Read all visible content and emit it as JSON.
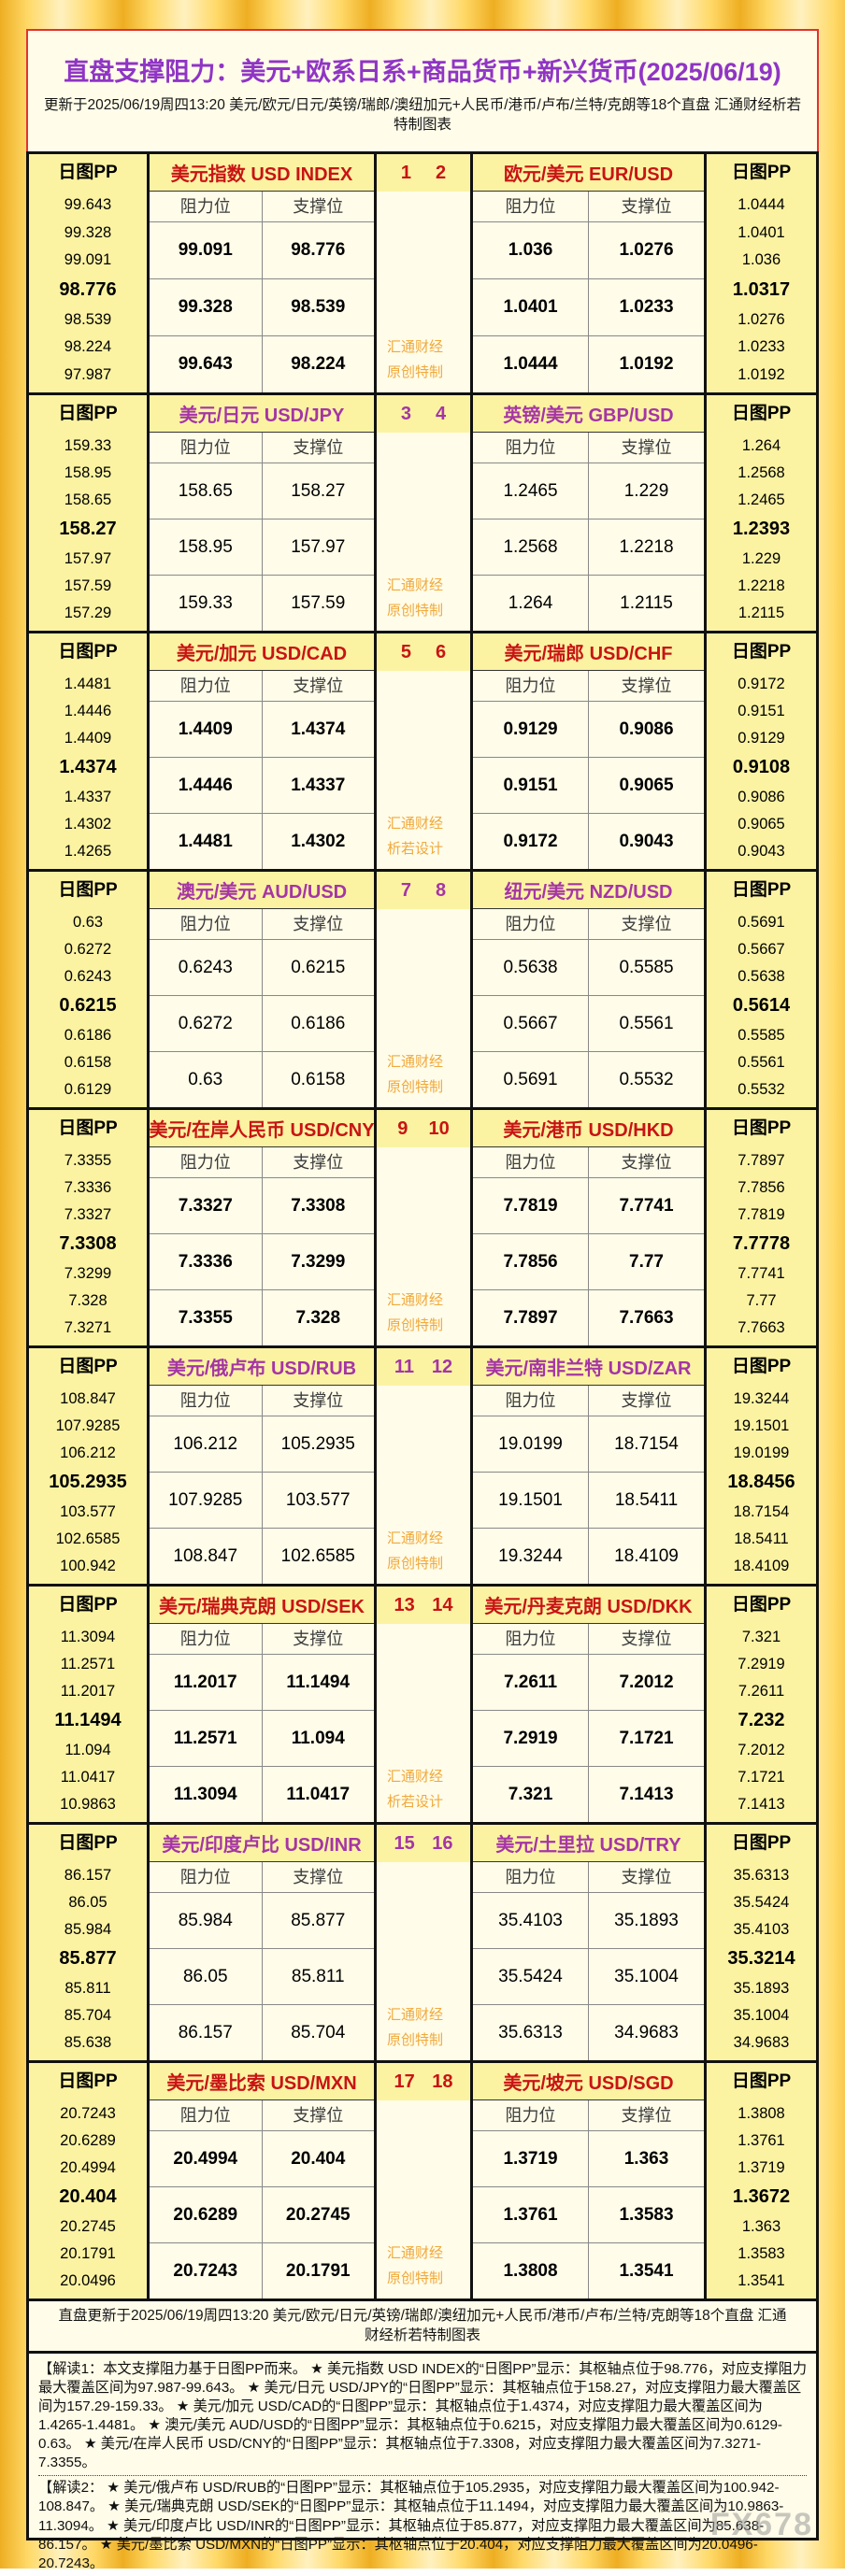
{
  "page": {
    "title": "直盘支撑阻力：美元+欧系日系+商品货币+新兴货币(2025/06/19)",
    "subtitle": "更新于2025/06/19周四13:20 美元/欧元/日元/英镑/瑞郎/澳纽加元+人民币/港币/卢布/兰特/克朗等18个直盘 汇通财经析若特制图表",
    "footer_line": "直盘更新于2025/06/19周四13:20 美元/欧元/日元/英镑/瑞郎/澳纽加元+人民币/港币/卢布/兰特/克朗等18个直盘 汇通财经析若特制图表",
    "brand_watermark": "FX678"
  },
  "labels": {
    "pp_header": "日图PP",
    "resistance": "阻力位",
    "support": "支撑位",
    "watermark_line1": "汇通财经"
  },
  "colors": {
    "red_accent": "#C81414",
    "magenta_accent": "#A535A5",
    "title_purple": "#8F35C5",
    "watermark_orange": "#F0A93C",
    "panel_yellow": "#FBF3A2",
    "panel_cream": "#FFFCE9",
    "gold_background": "#F2B62E"
  },
  "chart_data": {
    "type": "table",
    "title": "直盘支撑阻力：美元+欧系日系+商品货币+新兴货币(2025/06/19)",
    "updated": "2025/06/19 周四 13:20",
    "column_semantics": "pp = [R3,R2,R1,PP(枢轴,加粗),S1,S2,S3]; levels = 三行[阻力位,支撑位]",
    "blocks": [
      {
        "nums": [
          "1",
          "2"
        ],
        "accent": "red",
        "watermark_line2": "原创特制",
        "left": {
          "name": "美元指数",
          "code": "USD INDEX",
          "pivot_index": 3,
          "pp": [
            "99.643",
            "99.328",
            "99.091",
            "98.776",
            "98.539",
            "98.224",
            "97.987"
          ],
          "levels": [
            [
              "99.091",
              "98.776"
            ],
            [
              "99.328",
              "98.539"
            ],
            [
              "99.643",
              "98.224"
            ]
          ]
        },
        "right": {
          "name": "欧元/美元",
          "code": "EUR/USD",
          "pivot_index": 3,
          "pp": [
            "1.0444",
            "1.0401",
            "1.036",
            "1.0317",
            "1.0276",
            "1.0233",
            "1.0192"
          ],
          "levels": [
            [
              "1.036",
              "1.0276"
            ],
            [
              "1.0401",
              "1.0233"
            ],
            [
              "1.0444",
              "1.0192"
            ]
          ]
        }
      },
      {
        "nums": [
          "3",
          "4"
        ],
        "accent": "magenta",
        "watermark_line2": "原创特制",
        "left": {
          "name": "美元/日元",
          "code": "USD/JPY",
          "pivot_index": 3,
          "pp": [
            "159.33",
            "158.95",
            "158.65",
            "158.27",
            "157.97",
            "157.59",
            "157.29"
          ],
          "levels": [
            [
              "158.65",
              "158.27"
            ],
            [
              "158.95",
              "157.97"
            ],
            [
              "159.33",
              "157.59"
            ]
          ]
        },
        "right": {
          "name": "英镑/美元",
          "code": "GBP/USD",
          "pivot_index": 3,
          "pp": [
            "1.264",
            "1.2568",
            "1.2465",
            "1.2393",
            "1.229",
            "1.2218",
            "1.2115"
          ],
          "levels": [
            [
              "1.2465",
              "1.229"
            ],
            [
              "1.2568",
              "1.2218"
            ],
            [
              "1.264",
              "1.2115"
            ]
          ]
        }
      },
      {
        "nums": [
          "5",
          "6"
        ],
        "accent": "red",
        "watermark_line2": "析若设计",
        "left": {
          "name": "美元/加元",
          "code": "USD/CAD",
          "pivot_index": 3,
          "pp": [
            "1.4481",
            "1.4446",
            "1.4409",
            "1.4374",
            "1.4337",
            "1.4302",
            "1.4265"
          ],
          "levels": [
            [
              "1.4409",
              "1.4374"
            ],
            [
              "1.4446",
              "1.4337"
            ],
            [
              "1.4481",
              "1.4302"
            ]
          ]
        },
        "right": {
          "name": "美元/瑞郎",
          "code": "USD/CHF",
          "pivot_index": 3,
          "pp": [
            "0.9172",
            "0.9151",
            "0.9129",
            "0.9108",
            "0.9086",
            "0.9065",
            "0.9043"
          ],
          "levels": [
            [
              "0.9129",
              "0.9086"
            ],
            [
              "0.9151",
              "0.9065"
            ],
            [
              "0.9172",
              "0.9043"
            ]
          ]
        }
      },
      {
        "nums": [
          "7",
          "8"
        ],
        "accent": "magenta",
        "watermark_line2": "原创特制",
        "left": {
          "name": "澳元/美元",
          "code": "AUD/USD",
          "pivot_index": 3,
          "pp": [
            "0.63",
            "0.6272",
            "0.6243",
            "0.6215",
            "0.6186",
            "0.6158",
            "0.6129"
          ],
          "levels": [
            [
              "0.6243",
              "0.6215"
            ],
            [
              "0.6272",
              "0.6186"
            ],
            [
              "0.63",
              "0.6158"
            ]
          ]
        },
        "right": {
          "name": "纽元/美元",
          "code": "NZD/USD",
          "pivot_index": 3,
          "pp": [
            "0.5691",
            "0.5667",
            "0.5638",
            "0.5614",
            "0.5585",
            "0.5561",
            "0.5532"
          ],
          "levels": [
            [
              "0.5638",
              "0.5585"
            ],
            [
              "0.5667",
              "0.5561"
            ],
            [
              "0.5691",
              "0.5532"
            ]
          ]
        }
      },
      {
        "nums": [
          "9",
          "10"
        ],
        "accent": "red",
        "watermark_line2": "原创特制",
        "left": {
          "name": "美元/在岸人民币",
          "code": "USD/CNY",
          "pivot_index": 3,
          "pp": [
            "7.3355",
            "7.3336",
            "7.3327",
            "7.3308",
            "7.3299",
            "7.328",
            "7.3271"
          ],
          "levels": [
            [
              "7.3327",
              "7.3308"
            ],
            [
              "7.3336",
              "7.3299"
            ],
            [
              "7.3355",
              "7.328"
            ]
          ]
        },
        "right": {
          "name": "美元/港币",
          "code": "USD/HKD",
          "pivot_index": 3,
          "pp": [
            "7.7897",
            "7.7856",
            "7.7819",
            "7.7778",
            "7.7741",
            "7.77",
            "7.7663"
          ],
          "levels": [
            [
              "7.7819",
              "7.7741"
            ],
            [
              "7.7856",
              "7.77"
            ],
            [
              "7.7897",
              "7.7663"
            ]
          ]
        }
      },
      {
        "nums": [
          "11",
          "12"
        ],
        "accent": "magenta",
        "watermark_line2": "原创特制",
        "left": {
          "name": "美元/俄卢布",
          "code": "USD/RUB",
          "pivot_index": 3,
          "pp": [
            "108.847",
            "107.9285",
            "106.212",
            "105.2935",
            "103.577",
            "102.6585",
            "100.942"
          ],
          "levels": [
            [
              "106.212",
              "105.2935"
            ],
            [
              "107.9285",
              "103.577"
            ],
            [
              "108.847",
              "102.6585"
            ]
          ]
        },
        "right": {
          "name": "美元/南非兰特",
          "code": "USD/ZAR",
          "pivot_index": 3,
          "pp": [
            "19.3244",
            "19.1501",
            "19.0199",
            "18.8456",
            "18.7154",
            "18.5411",
            "18.4109"
          ],
          "levels": [
            [
              "19.0199",
              "18.7154"
            ],
            [
              "19.1501",
              "18.5411"
            ],
            [
              "19.3244",
              "18.4109"
            ]
          ]
        }
      },
      {
        "nums": [
          "13",
          "14"
        ],
        "accent": "red",
        "watermark_line2": "析若设计",
        "left": {
          "name": "美元/瑞典克朗",
          "code": "USD/SEK",
          "pivot_index": 3,
          "pp": [
            "11.3094",
            "11.2571",
            "11.2017",
            "11.1494",
            "11.094",
            "11.0417",
            "10.9863"
          ],
          "levels": [
            [
              "11.2017",
              "11.1494"
            ],
            [
              "11.2571",
              "11.094"
            ],
            [
              "11.3094",
              "11.0417"
            ]
          ]
        },
        "right": {
          "name": "美元/丹麦克朗",
          "code": "USD/DKK",
          "pivot_index": 3,
          "pp": [
            "7.321",
            "7.2919",
            "7.2611",
            "7.232",
            "7.2012",
            "7.1721",
            "7.1413"
          ],
          "levels": [
            [
              "7.2611",
              "7.2012"
            ],
            [
              "7.2919",
              "7.1721"
            ],
            [
              "7.321",
              "7.1413"
            ]
          ]
        }
      },
      {
        "nums": [
          "15",
          "16"
        ],
        "accent": "magenta",
        "watermark_line2": "原创特制",
        "left": {
          "name": "美元/印度卢比",
          "code": "USD/INR",
          "pivot_index": 3,
          "pp": [
            "86.157",
            "86.05",
            "85.984",
            "85.877",
            "85.811",
            "85.704",
            "85.638"
          ],
          "levels": [
            [
              "85.984",
              "85.877"
            ],
            [
              "86.05",
              "85.811"
            ],
            [
              "86.157",
              "85.704"
            ]
          ]
        },
        "right": {
          "name": "美元/土里拉",
          "code": "USD/TRY",
          "pivot_index": 3,
          "pp": [
            "35.6313",
            "35.5424",
            "35.4103",
            "35.3214",
            "35.1893",
            "35.1004",
            "34.9683"
          ],
          "levels": [
            [
              "35.4103",
              "35.1893"
            ],
            [
              "35.5424",
              "35.1004"
            ],
            [
              "35.6313",
              "34.9683"
            ]
          ]
        }
      },
      {
        "nums": [
          "17",
          "18"
        ],
        "accent": "red",
        "watermark_line2": "原创特制",
        "left": {
          "name": "美元/墨比索",
          "code": "USD/MXN",
          "pivot_index": 3,
          "pp": [
            "20.7243",
            "20.6289",
            "20.4994",
            "20.404",
            "20.2745",
            "20.1791",
            "20.0496"
          ],
          "levels": [
            [
              "20.4994",
              "20.404"
            ],
            [
              "20.6289",
              "20.2745"
            ],
            [
              "20.7243",
              "20.1791"
            ]
          ]
        },
        "right": {
          "name": "美元/坡元",
          "code": "USD/SGD",
          "pivot_index": 3,
          "pp": [
            "1.3808",
            "1.3761",
            "1.3719",
            "1.3672",
            "1.363",
            "1.3583",
            "1.3541"
          ],
          "levels": [
            [
              "1.3719",
              "1.363"
            ],
            [
              "1.3761",
              "1.3583"
            ],
            [
              "1.3808",
              "1.3541"
            ]
          ]
        }
      }
    ]
  },
  "notes": [
    "【解读1：本文支撑阻力基于日图PP而来。 ★ 美元指数 USD INDEX的“日图PP”显示：其枢轴点位于98.776，对应支撑阻力最大覆盖区间为97.987-99.643。 ★ 美元/日元 USD/JPY的“日图PP”显示：其枢轴点位于158.27，对应支撑阻力最大覆盖区间为157.29-159.33。 ★ 美元/加元 USD/CAD的“日图PP”显示：其枢轴点位于1.4374，对应支撑阻力最大覆盖区间为1.4265-1.4481。 ★ 澳元/美元 AUD/USD的“日图PP”显示：其枢轴点位于0.6215，对应支撑阻力最大覆盖区间为0.6129-0.63。 ★ 美元/在岸人民币 USD/CNY的“日图PP”显示：其枢轴点位于7.3308，对应支撑阻力最大覆盖区间为7.3271-7.3355。",
    "【解读2： ★ 美元/俄卢布 USD/RUB的“日图PP”显示：其枢轴点位于105.2935，对应支撑阻力最大覆盖区间为100.942-108.847。 ★ 美元/瑞典克朗 USD/SEK的“日图PP”显示：其枢轴点位于11.1494，对应支撑阻力最大覆盖区间为10.9863-11.3094。 ★ 美元/印度卢比 USD/INR的“日图PP”显示：其枢轴点位于85.877，对应支撑阻力最大覆盖区间为85.638-86.157。 ★ 美元/墨比索 USD/MXN的“日图PP”显示：其枢轴点位于20.404，对应支撑阻力最大覆盖区间为20.0496-20.7243。"
  ]
}
